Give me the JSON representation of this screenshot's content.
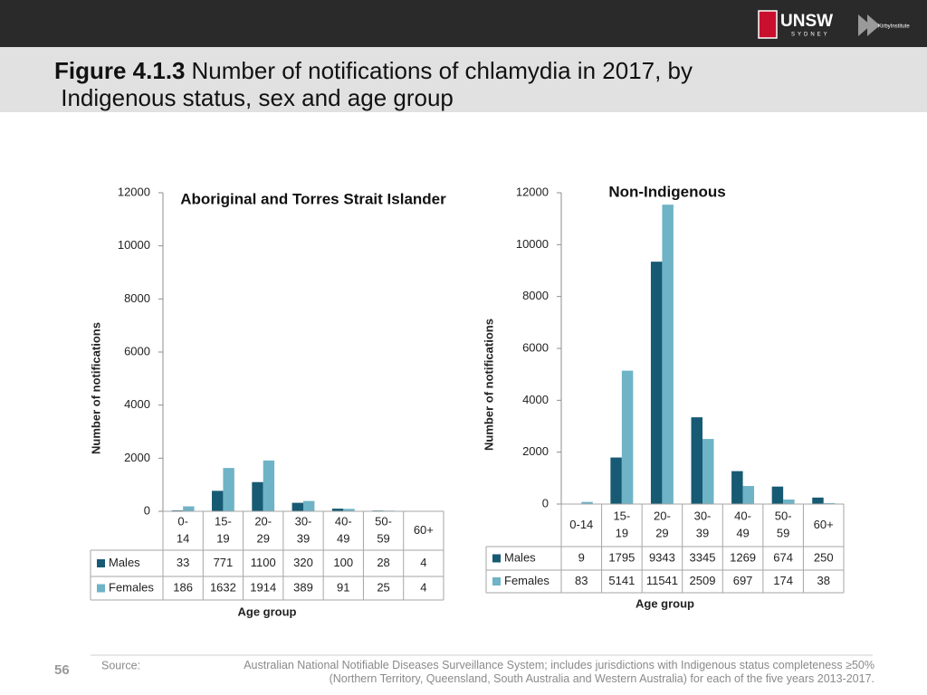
{
  "header": {
    "figure_label": "Figure 4.1.3",
    "title": "Number of notifications of chlamydia in 2017, by Indigenous status, sex and age group",
    "logo_unsw": "UNSW",
    "logo_sydney": "SYDNEY",
    "logo_kirby": "KirbyInstitute"
  },
  "chart_data": [
    {
      "type": "bar",
      "title": "Aboriginal and Torres Strait Islander",
      "y_label": "Number of notifications",
      "x_label": "Age group",
      "categories": [
        "0-14",
        "15-19",
        "20-29",
        "30-39",
        "40-49",
        "50-59",
        "60+"
      ],
      "series": [
        {
          "name": "Males",
          "color": "#175a73",
          "values": [
            33,
            771,
            1100,
            320,
            100,
            28,
            4
          ]
        },
        {
          "name": "Females",
          "color": "#6fb3c7",
          "values": [
            186,
            1632,
            1914,
            389,
            91,
            25,
            4
          ]
        }
      ],
      "ylim": [
        0,
        12000
      ],
      "yticks": [
        0,
        2000,
        4000,
        6000,
        8000,
        10000,
        12000
      ]
    },
    {
      "type": "bar",
      "title": "Non-Indigenous",
      "y_label": "Number of notifications",
      "x_label": "Age group",
      "categories": [
        "0-14",
        "15-19",
        "20-29",
        "30-39",
        "40-49",
        "50-59",
        "60+"
      ],
      "series": [
        {
          "name": "Males",
          "color": "#175a73",
          "values": [
            9,
            1795,
            9343,
            3345,
            1269,
            674,
            250
          ]
        },
        {
          "name": "Females",
          "color": "#6fb3c7",
          "values": [
            83,
            5141,
            11541,
            2509,
            697,
            174,
            38
          ]
        }
      ],
      "ylim": [
        0,
        12000
      ],
      "yticks": [
        0,
        2000,
        4000,
        6000,
        8000,
        10000,
        12000
      ]
    }
  ],
  "footer": {
    "page": "56",
    "source_label": "Source:",
    "source": "Australian National Notifiable Diseases Surveillance System; includes jurisdictions with Indigenous status completeness ≥50% (Northern Territory, Queensland, South Australia and Western Australia) for each of the five years 2013-2017."
  }
}
